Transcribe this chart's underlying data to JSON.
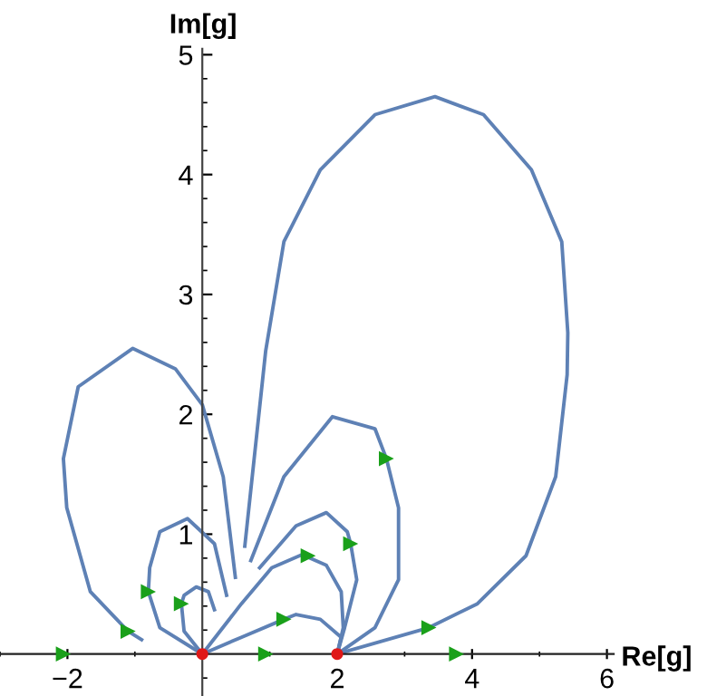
{
  "chart_data": {
    "type": "line",
    "xlabel": "Re[g]",
    "ylabel": "Im[g]",
    "xlim": [
      -3.0,
      6.1
    ],
    "ylim": [
      -0.35,
      5.05
    ],
    "xticks": [
      -2,
      2,
      4,
      6
    ],
    "yticks": [
      1,
      2,
      3,
      4,
      5
    ],
    "grid": false,
    "legend": false,
    "line_style": "solid",
    "series": [
      {
        "color": "#5e81b5",
        "x": [
          -0.9,
          -1.1,
          -1.66,
          -2.01,
          -2.06,
          -1.84,
          -1.03,
          -0.4,
          0.0,
          0.31,
          0.49
        ],
        "values": [
          0.12,
          0.19,
          0.52,
          1.22,
          1.63,
          2.23,
          2.55,
          2.38,
          2.08,
          1.48,
          0.64
        ]
      },
      {
        "color": "#5e81b5",
        "x": [
          2.0,
          3.36,
          4.08,
          4.8,
          5.24,
          5.41,
          5.42,
          5.33,
          4.88,
          4.17,
          3.45,
          2.56,
          1.75,
          1.21,
          0.94,
          0.63
        ],
        "values": [
          0.0,
          0.22,
          0.42,
          0.82,
          1.48,
          2.33,
          2.68,
          3.44,
          4.04,
          4.5,
          4.65,
          4.5,
          4.04,
          3.44,
          2.53,
          0.9
        ]
      },
      {
        "color": "#5e81b5",
        "x": [
          0.72,
          1.21,
          1.93,
          2.56,
          2.73,
          2.91,
          2.91,
          2.56,
          2.0
        ],
        "values": [
          0.78,
          1.48,
          1.98,
          1.88,
          1.63,
          1.22,
          0.62,
          0.22,
          0.0
        ]
      },
      {
        "color": "#5e81b5",
        "x": [
          0.85,
          1.39,
          1.84,
          2.15,
          2.2,
          2.29,
          2.11,
          2.0
        ],
        "values": [
          0.72,
          1.07,
          1.18,
          1.02,
          0.92,
          0.62,
          0.22,
          0.0
        ]
      },
      {
        "color": "#5e81b5",
        "x": [
          0.0,
          0.58,
          1.03,
          1.48,
          1.84,
          2.06,
          2.09,
          2.0
        ],
        "values": [
          0.0,
          0.42,
          0.72,
          0.83,
          0.74,
          0.52,
          0.22,
          0.0
        ]
      },
      {
        "color": "#5e81b5",
        "x": [
          0.0,
          0.58,
          1.21,
          1.39,
          1.75,
          2.06,
          2.0
        ],
        "values": [
          0.0,
          0.14,
          0.29,
          0.33,
          0.29,
          0.14,
          0.0
        ]
      },
      {
        "color": "#5e81b5",
        "x": [
          0.36,
          0.18,
          -0.22,
          -0.63,
          -0.78,
          -0.8,
          -0.63,
          0.0
        ],
        "values": [
          0.49,
          0.92,
          1.13,
          1.02,
          0.72,
          0.52,
          0.22,
          0.0
        ]
      },
      {
        "color": "#5e81b5",
        "x": [
          0.18,
          0.09,
          -0.09,
          -0.27,
          -0.31,
          -0.27,
          0.0
        ],
        "values": [
          0.37,
          0.52,
          0.56,
          0.49,
          0.42,
          0.19,
          0.0
        ]
      },
      {
        "type": "scatter",
        "marker": "triangle",
        "color": "#1aa01a",
        "x": [
          -2.06,
          0.94,
          3.77,
          -1.1,
          -0.8,
          -0.31,
          1.21,
          1.57,
          2.73,
          2.2,
          3.36
        ],
        "values": [
          0.0,
          0.0,
          0.0,
          0.19,
          0.52,
          0.42,
          0.29,
          0.82,
          1.63,
          0.92,
          0.22
        ]
      },
      {
        "type": "scatter",
        "marker": "circle",
        "color": "#e01818",
        "x": [
          0,
          2
        ],
        "values": [
          0,
          0
        ]
      }
    ]
  }
}
